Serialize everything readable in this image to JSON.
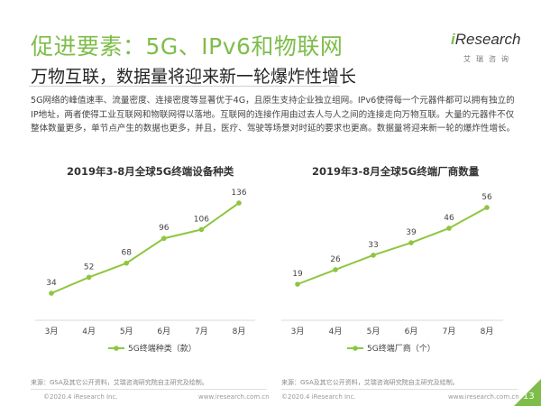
{
  "header": {
    "title": "促进要素：5G、IPv6和物联网",
    "subtitle": "万物互联，数据量将迎来新一轮爆炸性增长"
  },
  "logo": {
    "brand_prefix": "i",
    "brand_rest": "Research",
    "sub": "艾瑞咨询"
  },
  "body_text": "5G网络的峰值速率、流量密度、连接密度等显著优于4G，且原生支持企业独立组网。IPv6使得每一个元器件都可以拥有独立的IP地址，两者使得工业互联网和物联网得以落地。互联网的连接作用由过去人与人之间的连接走向万物互联。大量的元器件不仅整体数量更多，单节点产生的数据也更多，并且，医疗、驾驶等场景对时延的要求也更高。数据量将迎来新一轮的爆炸性增长。",
  "colors": {
    "accent": "#7ebd4a",
    "line": "#8dc63f"
  },
  "chart_data": [
    {
      "type": "line",
      "title": "2019年3-8月全球5G终端设备种类",
      "categories": [
        "3月",
        "4月",
        "5月",
        "6月",
        "7月",
        "8月"
      ],
      "series": [
        {
          "name": "5G终端种类（款）",
          "values": [
            34,
            52,
            68,
            96,
            106,
            136
          ]
        }
      ],
      "ylim": [
        0,
        150
      ],
      "grid": false,
      "legend": "bottom"
    },
    {
      "type": "line",
      "title": "2019年3-8月全球5G终端厂商数量",
      "categories": [
        "3月",
        "4月",
        "5月",
        "6月",
        "7月",
        "8月"
      ],
      "series": [
        {
          "name": "5G终端厂商（个）",
          "values": [
            19,
            26,
            33,
            39,
            46,
            56
          ]
        }
      ],
      "ylim": [
        0,
        70
      ],
      "grid": false,
      "legend": "bottom"
    }
  ],
  "footer": {
    "source": "来源：GSA及其它公开资料，艾瑞咨询研究院自主研究及绘制。",
    "copyright": "©2020.4 iResearch Inc.",
    "url": "www.iresearch.com.cn",
    "page": "13"
  }
}
